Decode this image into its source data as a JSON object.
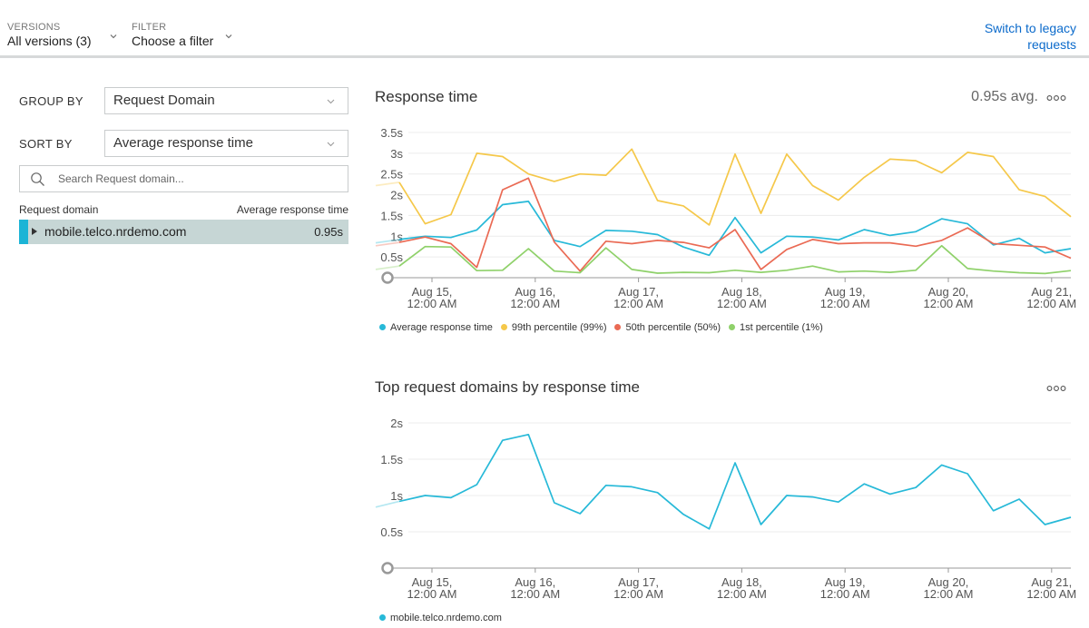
{
  "topbar": {
    "versions_label": "VERSIONS",
    "versions_value": "All versions (3)",
    "filter_label": "FILTER",
    "filter_value": "Choose a filter",
    "legacy_line1": "Switch to legacy",
    "legacy_line2": "requests"
  },
  "sidebar": {
    "group_by_label": "GROUP BY",
    "group_by_value": "Request Domain",
    "sort_by_label": "SORT BY",
    "sort_by_value": "Average response time",
    "search_placeholder": "Search Request domain...",
    "col_domain": "Request domain",
    "col_avg": "Average response time",
    "rows": [
      {
        "domain": "mobile.telco.nrdemo.com",
        "value": "0.95s"
      }
    ]
  },
  "response_chart": {
    "title": "Response time",
    "avg": "0.95s avg."
  },
  "top_chart": {
    "title": "Top request domains by response time"
  },
  "colors": {
    "avg": "#27b9d8",
    "p99": "#f5c84a",
    "p50": "#ea6a54",
    "p1": "#8fd16a",
    "link": "#0b6acb"
  },
  "chart_data": [
    {
      "type": "line",
      "title": "Response time",
      "ylim": [
        0,
        3.5
      ],
      "y_ticks": [
        "3.5s",
        "3s",
        "2.5s",
        "2s",
        "1.5s",
        "1s",
        "0.5s"
      ],
      "x_ticks": [
        [
          "Aug 15,",
          "12:00 AM"
        ],
        [
          "Aug 16,",
          "12:00 AM"
        ],
        [
          "Aug 17,",
          "12:00 AM"
        ],
        [
          "Aug 18,",
          "12:00 AM"
        ],
        [
          "Aug 19,",
          "12:00 AM"
        ],
        [
          "Aug 20,",
          "12:00 AM"
        ],
        [
          "Aug 21,",
          "12:00 AM"
        ]
      ],
      "series": [
        {
          "name": "Average response time",
          "color": "#27b9d8",
          "values": [
            0.92,
            1.0,
            0.97,
            1.15,
            1.76,
            1.84,
            0.9,
            0.75,
            1.14,
            1.12,
            1.04,
            0.74,
            0.54,
            1.45,
            0.6,
            1.0,
            0.98,
            0.91,
            1.16,
            1.02,
            1.11,
            1.42,
            1.3,
            0.79,
            0.95,
            0.6,
            0.7
          ]
        },
        {
          "name": "99th percentile (99%)",
          "color": "#f5c84a",
          "values": [
            2.3,
            1.3,
            1.52,
            3.0,
            2.92,
            2.5,
            2.32,
            2.5,
            2.47,
            3.1,
            1.86,
            1.73,
            1.27,
            2.98,
            1.55,
            2.98,
            2.22,
            1.87,
            2.42,
            2.86,
            2.82,
            2.53,
            3.02,
            2.92,
            2.12,
            1.96,
            1.47
          ]
        },
        {
          "name": "50th percentile (50%)",
          "color": "#ea6a54",
          "values": [
            0.85,
            0.98,
            0.82,
            0.25,
            2.12,
            2.4,
            0.86,
            0.16,
            0.88,
            0.82,
            0.9,
            0.85,
            0.72,
            1.16,
            0.2,
            0.68,
            0.92,
            0.82,
            0.84,
            0.84,
            0.76,
            0.9,
            1.2,
            0.82,
            0.78,
            0.74,
            0.47
          ]
        },
        {
          "name": "1st percentile (1%)",
          "color": "#8fd16a",
          "values": [
            0.28,
            0.75,
            0.74,
            0.17,
            0.18,
            0.7,
            0.16,
            0.12,
            0.72,
            0.2,
            0.11,
            0.13,
            0.12,
            0.18,
            0.13,
            0.18,
            0.28,
            0.14,
            0.16,
            0.13,
            0.18,
            0.77,
            0.22,
            0.16,
            0.12,
            0.1,
            0.17
          ]
        }
      ]
    },
    {
      "type": "line",
      "title": "Top request domains by response time",
      "ylim": [
        0,
        2
      ],
      "y_ticks": [
        "2s",
        "1.5s",
        "1s",
        "0.5s"
      ],
      "x_ticks": [
        [
          "Aug 15,",
          "12:00 AM"
        ],
        [
          "Aug 16,",
          "12:00 AM"
        ],
        [
          "Aug 17,",
          "12:00 AM"
        ],
        [
          "Aug 18,",
          "12:00 AM"
        ],
        [
          "Aug 19,",
          "12:00 AM"
        ],
        [
          "Aug 20,",
          "12:00 AM"
        ],
        [
          "Aug 21,",
          "12:00 AM"
        ]
      ],
      "series": [
        {
          "name": "mobile.telco.nrdemo.com",
          "color": "#27b9d8",
          "values": [
            0.92,
            1.0,
            0.97,
            1.15,
            1.76,
            1.84,
            0.9,
            0.75,
            1.14,
            1.12,
            1.04,
            0.74,
            0.54,
            1.45,
            0.6,
            1.0,
            0.98,
            0.91,
            1.16,
            1.02,
            1.11,
            1.42,
            1.3,
            0.79,
            0.95,
            0.6,
            0.7
          ]
        }
      ]
    }
  ]
}
